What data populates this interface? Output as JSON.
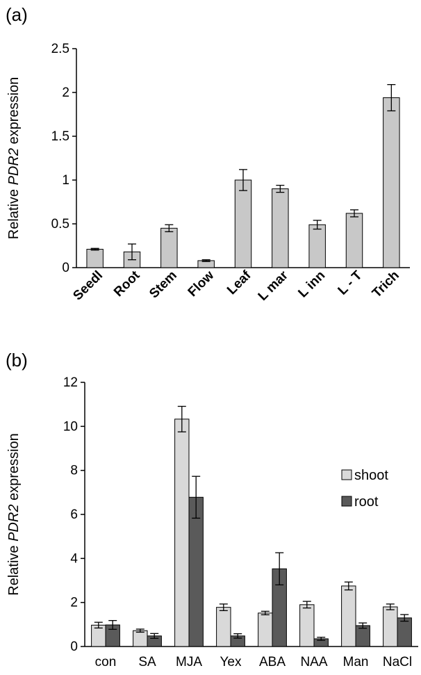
{
  "chart_data": [
    {
      "panel": "(a)",
      "type": "bar",
      "ylabel_prefix": "Relative ",
      "ylabel_gene": "PDR2",
      "ylabel_suffix": " expression",
      "ylim": [
        0,
        2.5
      ],
      "yticks": [
        0,
        0.5,
        1,
        1.5,
        2,
        2.5
      ],
      "ytick_labels": [
        "0",
        "0.5",
        "1",
        "1.5",
        "2",
        "2.5"
      ],
      "categories": [
        "Seedl",
        "Root",
        "Stem",
        "Flow",
        "Leaf",
        "L mar",
        "L inn",
        "L - T",
        "Trich"
      ],
      "values": [
        0.21,
        0.18,
        0.45,
        0.08,
        1.0,
        0.9,
        0.49,
        0.62,
        1.94
      ],
      "errors": [
        0.01,
        0.09,
        0.04,
        0.01,
        0.12,
        0.04,
        0.05,
        0.04,
        0.15
      ],
      "bar_color": "#c8c8c8"
    },
    {
      "panel": "(b)",
      "type": "bar",
      "ylabel_prefix": "Relative ",
      "ylabel_gene": "PDR2",
      "ylabel_suffix": " expression",
      "ylim": [
        0,
        12
      ],
      "yticks": [
        0,
        2,
        4,
        6,
        8,
        10,
        12
      ],
      "ytick_labels": [
        "0",
        "2",
        "4",
        "6",
        "8",
        "10",
        "12"
      ],
      "categories": [
        "con",
        "SA",
        "MJA",
        "Yex",
        "ABA",
        "NAA",
        "Man",
        "NaCl"
      ],
      "legend_position": "right",
      "series": [
        {
          "name": "shoot",
          "color": "#d9d9d9",
          "values": [
            0.97,
            0.72,
            10.33,
            1.78,
            1.52,
            1.9,
            2.75,
            1.8
          ],
          "errors": [
            0.13,
            0.07,
            0.58,
            0.15,
            0.08,
            0.15,
            0.18,
            0.13
          ]
        },
        {
          "name": "root",
          "color": "#5a5a5a",
          "values": [
            0.98,
            0.48,
            6.78,
            0.48,
            3.53,
            0.35,
            0.95,
            1.3
          ],
          "errors": [
            0.2,
            0.11,
            0.95,
            0.1,
            0.73,
            0.07,
            0.12,
            0.15
          ]
        }
      ]
    }
  ]
}
